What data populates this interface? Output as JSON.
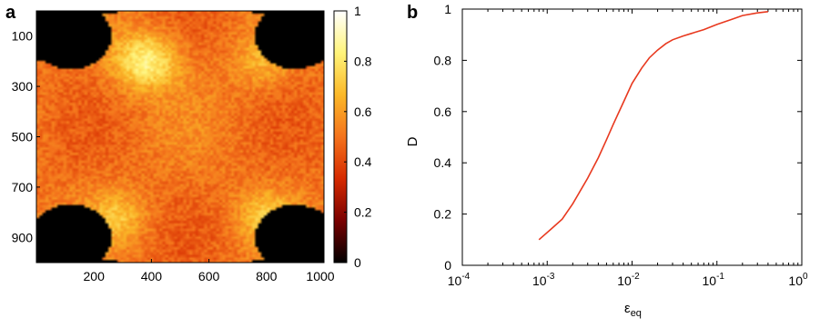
{
  "chart_data": [
    {
      "panel_label": "a",
      "type": "heatmap",
      "x_ticks": [
        "200",
        "400",
        "600",
        "800",
        "1000"
      ],
      "x_tick_values": [
        200,
        400,
        600,
        800,
        1000
      ],
      "y_ticks": [
        "100",
        "300",
        "500",
        "700",
        "900"
      ],
      "y_tick_values": [
        100,
        300,
        500,
        700,
        900
      ],
      "xlim": [
        0,
        1000
      ],
      "ylim": [
        0,
        1000
      ],
      "y_reversed": true,
      "colorbar": {
        "ticks": [
          "0",
          "0.2",
          "0.4",
          "0.6",
          "0.8",
          "1"
        ],
        "tick_values": [
          0,
          0.2,
          0.4,
          0.6,
          0.8,
          1.0
        ],
        "range": [
          0,
          1
        ],
        "colormap": [
          "#000000",
          "#7a0000",
          "#d62a00",
          "#f4731c",
          "#fbb828",
          "#fff47a",
          "#ffffff"
        ]
      },
      "grid": false
    },
    {
      "panel_label": "b",
      "type": "line",
      "xscale": "log",
      "xlim": [
        0.0001,
        1
      ],
      "ylim": [
        0,
        1
      ],
      "x_ticks": [
        "10",
        "10",
        "10",
        "10",
        "10"
      ],
      "x_tick_exponents": [
        "-4",
        "-3",
        "-2",
        "-1",
        "0"
      ],
      "x_tick_values": [
        0.0001,
        0.001,
        0.01,
        0.1,
        1
      ],
      "y_ticks": [
        "0",
        "0.2",
        "0.4",
        "0.6",
        "0.8",
        "1"
      ],
      "y_tick_values": [
        0,
        0.2,
        0.4,
        0.6,
        0.8,
        1.0
      ],
      "xlabel": "ε",
      "xlabel_sub": "eq",
      "ylabel": "D",
      "grid": false,
      "series": [
        {
          "color": "#e8391f",
          "x": [
            0.0008,
            0.0011,
            0.0015,
            0.002,
            0.003,
            0.004,
            0.005,
            0.006,
            0.008,
            0.01,
            0.013,
            0.016,
            0.02,
            0.025,
            0.03,
            0.04,
            0.05,
            0.07,
            0.1,
            0.15,
            0.2,
            0.3,
            0.4
          ],
          "y": [
            0.1,
            0.14,
            0.18,
            0.24,
            0.34,
            0.42,
            0.49,
            0.55,
            0.64,
            0.71,
            0.77,
            0.81,
            0.84,
            0.865,
            0.88,
            0.895,
            0.905,
            0.92,
            0.94,
            0.96,
            0.975,
            0.985,
            0.99
          ]
        }
      ]
    }
  ]
}
